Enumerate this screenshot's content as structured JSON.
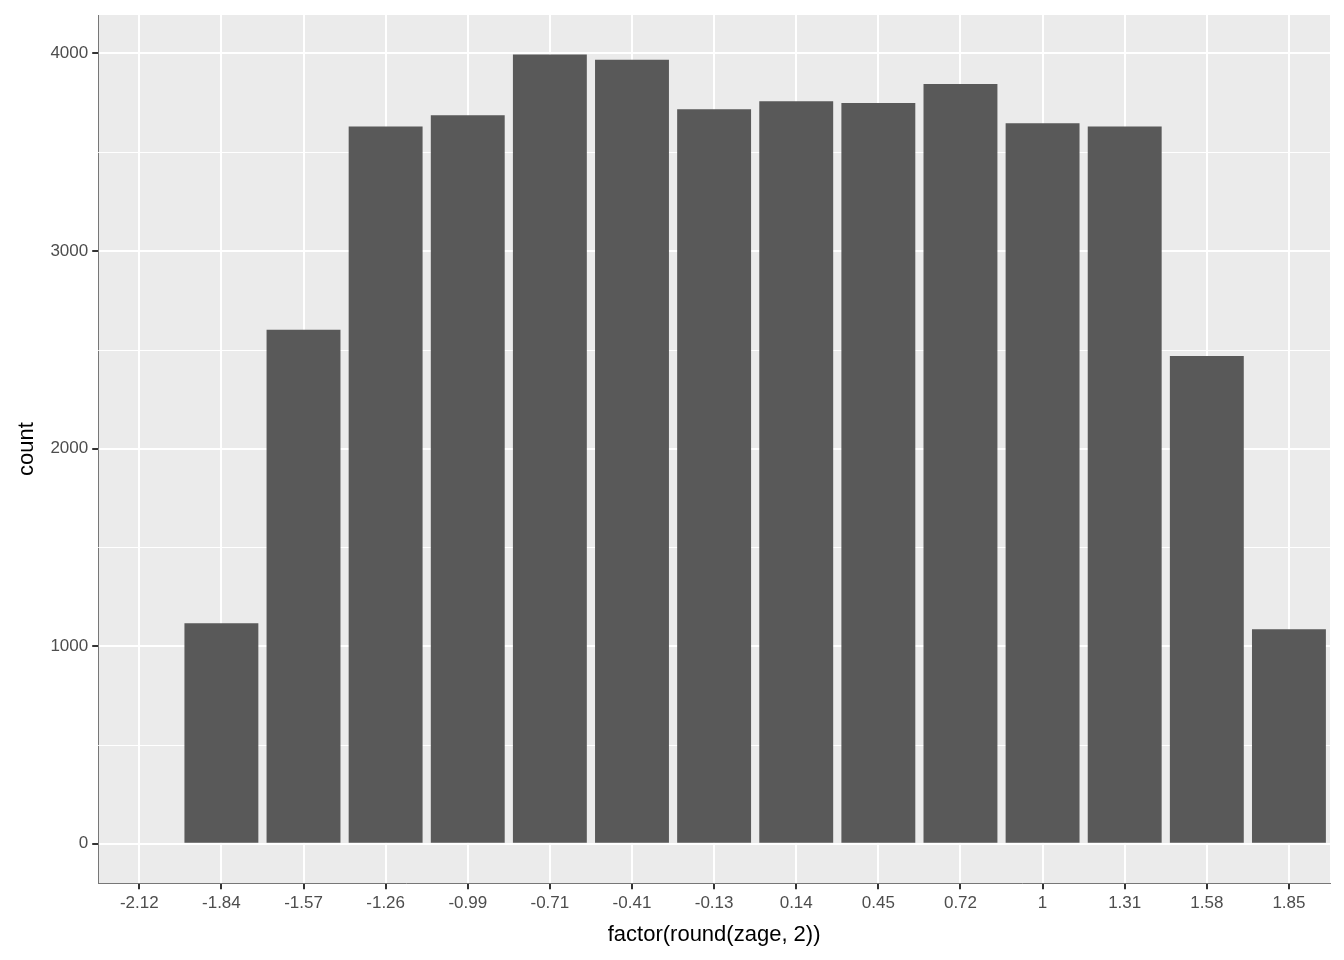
{
  "chart_data": {
    "type": "bar",
    "x_label": "factor(round(zage, 2))",
    "y_label": "count",
    "categories": [
      "-2.12",
      "-1.84",
      "-1.57",
      "-1.26",
      "-0.99",
      "-0.71",
      "-0.41",
      "-0.13",
      "0.14",
      "0.45",
      "0.72",
      "1",
      "1.31",
      "1.58",
      "1.85"
    ],
    "values": [
      5,
      1116,
      2601,
      3630,
      3687,
      3994,
      3968,
      3717,
      3758,
      3748,
      3845,
      3646,
      3630,
      2468,
      1085
    ],
    "color": "#595959",
    "ylim": [
      -200,
      4194
    ],
    "yticks": [
      0,
      1000,
      2000,
      3000,
      4000
    ],
    "grid": true
  }
}
